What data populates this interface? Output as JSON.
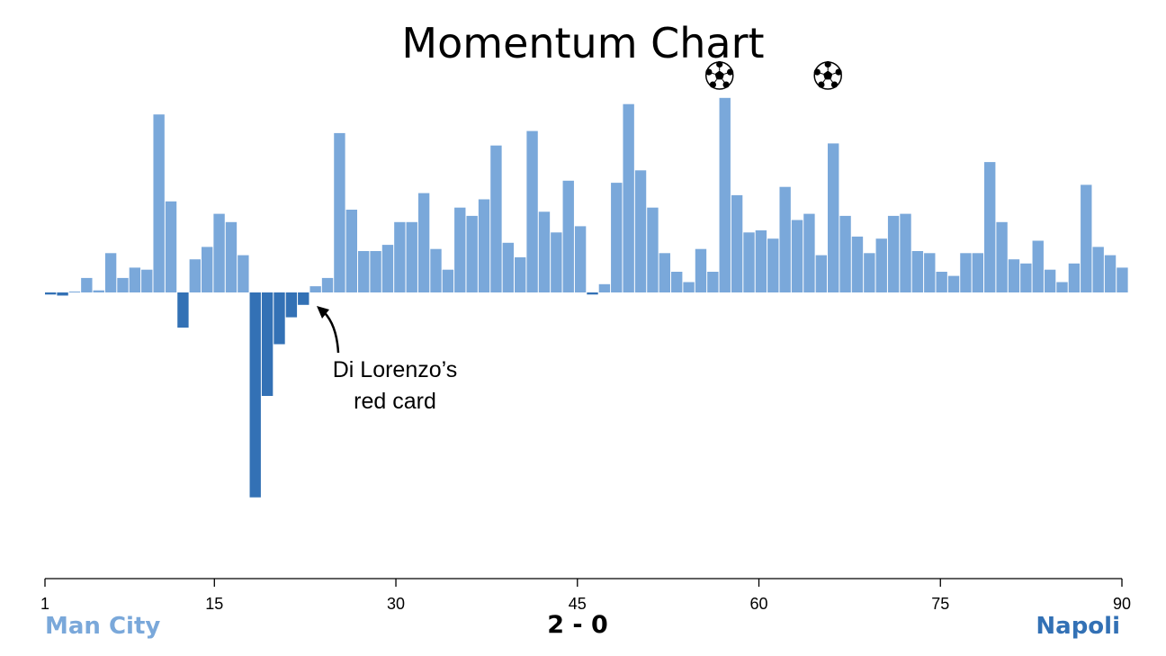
{
  "chart_data": {
    "type": "bar",
    "title": "Momentum Chart",
    "x": [
      1,
      2,
      3,
      4,
      5,
      6,
      7,
      8,
      9,
      10,
      11,
      12,
      13,
      14,
      15,
      16,
      17,
      18,
      19,
      20,
      21,
      22,
      23,
      24,
      25,
      26,
      27,
      28,
      29,
      30,
      31,
      32,
      33,
      34,
      35,
      36,
      37,
      38,
      39,
      40,
      41,
      42,
      43,
      44,
      45,
      46,
      47,
      48,
      49,
      50,
      51,
      52,
      53,
      54,
      55,
      56,
      57,
      58,
      59,
      60,
      61,
      62,
      63,
      64,
      65,
      66,
      67,
      68,
      69,
      70,
      71,
      72,
      73,
      74,
      75,
      76,
      77,
      78,
      79,
      80,
      81,
      82,
      83,
      84,
      85,
      86,
      87,
      88,
      89,
      90
    ],
    "values": [
      -0.01,
      -0.015,
      0,
      0.07,
      0.01,
      0.19,
      0.07,
      0.12,
      0.11,
      0.86,
      0.44,
      -0.17,
      0.16,
      0.22,
      0.38,
      0.34,
      0.18,
      -0.99,
      -0.5,
      -0.25,
      -0.12,
      -0.06,
      0.03,
      0.07,
      0.77,
      0.4,
      0.2,
      0.2,
      0.23,
      0.34,
      0.34,
      0.48,
      0.21,
      0.11,
      0.41,
      0.37,
      0.45,
      0.71,
      0.24,
      0.17,
      0.78,
      0.39,
      0.29,
      0.54,
      0.32,
      -0.01,
      0.04,
      0.53,
      0.91,
      0.59,
      0.41,
      0.19,
      0.1,
      0.05,
      0.21,
      0.1,
      0.94,
      0.47,
      0.29,
      0.3,
      0.26,
      0.51,
      0.35,
      0.38,
      0.18,
      0.72,
      0.37,
      0.27,
      0.19,
      0.26,
      0.37,
      0.38,
      0.2,
      0.19,
      0.1,
      0.08,
      0.19,
      0.19,
      0.63,
      0.34,
      0.16,
      0.14,
      0.25,
      0.11,
      0.05,
      0.14,
      0.52,
      0.22,
      0.18,
      0.12
    ],
    "xticks": [
      1,
      15,
      30,
      45,
      60,
      75,
      90
    ],
    "xlim": [
      1,
      90
    ],
    "ylim": [
      -1,
      1
    ],
    "grid": false,
    "series": [
      {
        "name": "Man City",
        "color": "#7aa8da"
      },
      {
        "name": "Napoli",
        "color": "#3371b5"
      }
    ],
    "goals": [
      {
        "minute": 57,
        "icon": "soccer-ball-icon"
      },
      {
        "minute": 66,
        "icon": "soccer-ball-icon"
      }
    ],
    "annotations": [
      {
        "text_line1": "Di Lorenzo’s",
        "text_line2": "red card",
        "minute": 23
      }
    ]
  },
  "labels": {
    "title": "Momentum Chart",
    "home_team": "Man City",
    "away_team": "Napoli",
    "score": "2 - 0",
    "annotation_line1": "Di Lorenzo’s",
    "annotation_line2": "red card"
  },
  "colors": {
    "home": "#7aa8da",
    "away": "#3371b5",
    "axis": "#000000"
  }
}
